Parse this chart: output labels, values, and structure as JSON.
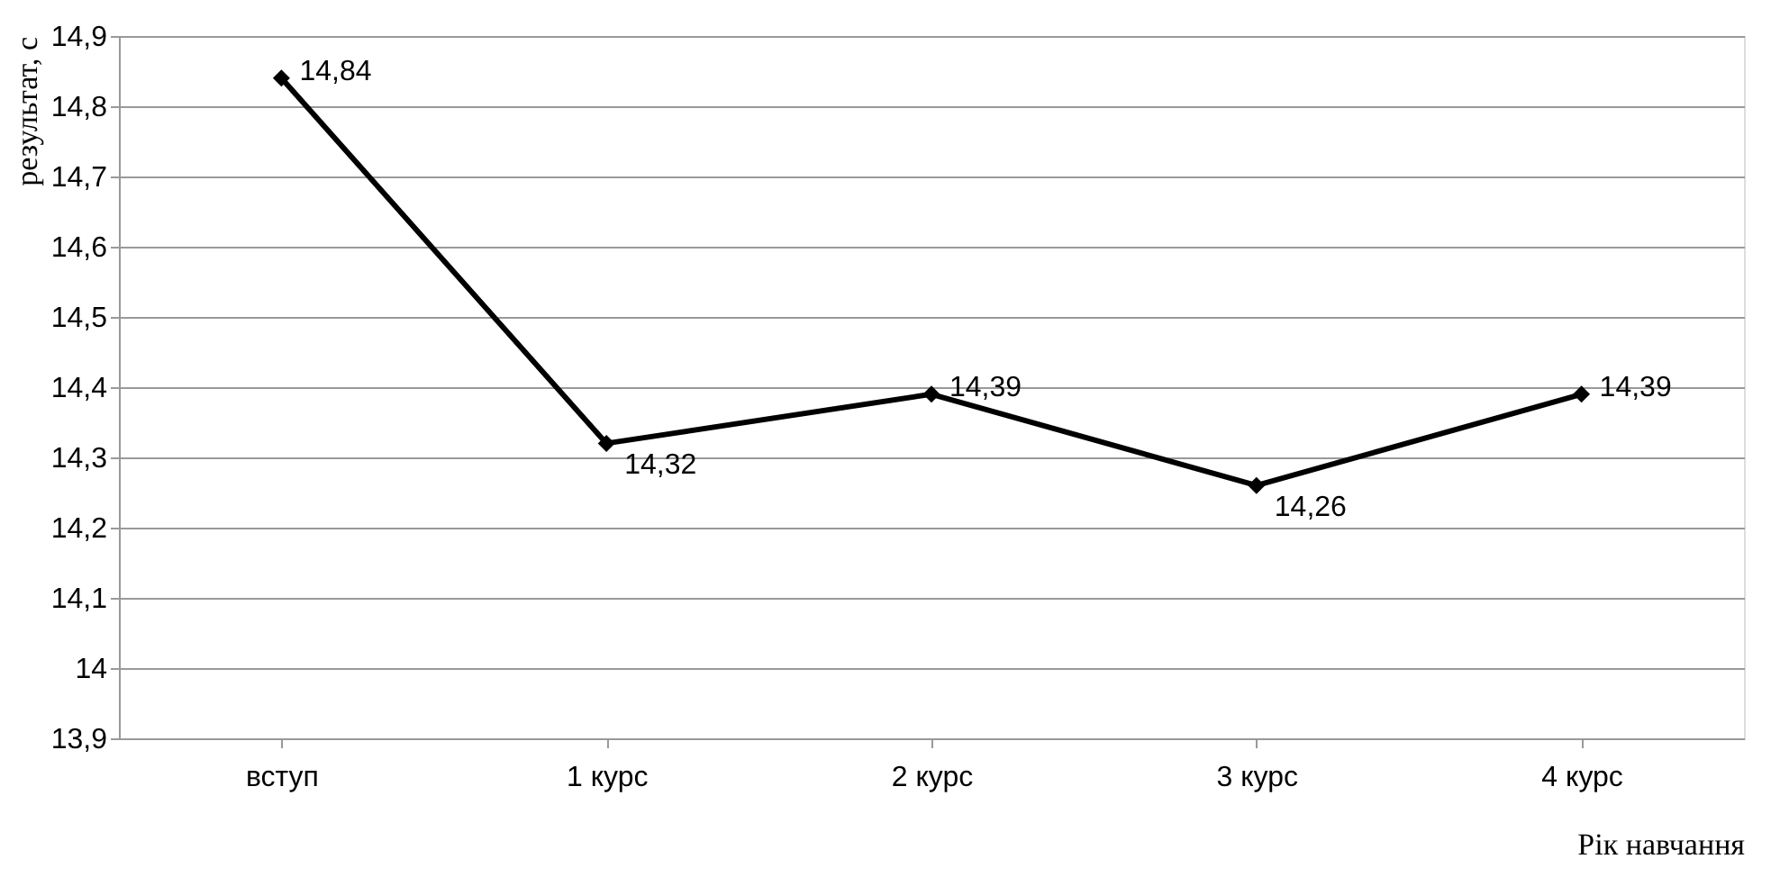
{
  "chart_data": {
    "type": "line",
    "ylabel": "результат, с",
    "xlabel": "Рік навчання",
    "categories": [
      "вступ",
      "1 курс",
      "2 курс",
      "3 курс",
      "4 курс"
    ],
    "series": [
      {
        "color": "#000000",
        "values": [
          14.84,
          14.32,
          14.39,
          14.26,
          14.39
        ],
        "value_labels": [
          "14,84",
          "14,32",
          "14,39",
          "14,26",
          "14,39"
        ]
      }
    ],
    "ylim": [
      13.9,
      14.9
    ],
    "yticks": [
      {
        "value": 13.9,
        "label": "13,9"
      },
      {
        "value": 14.0,
        "label": "14"
      },
      {
        "value": 14.1,
        "label": "14,1"
      },
      {
        "value": 14.2,
        "label": "14,2"
      },
      {
        "value": 14.3,
        "label": "14,3"
      },
      {
        "value": 14.4,
        "label": "14,4"
      },
      {
        "value": 14.5,
        "label": "14,5"
      },
      {
        "value": 14.6,
        "label": "14,6"
      },
      {
        "value": 14.7,
        "label": "14,7"
      },
      {
        "value": 14.8,
        "label": "14,8"
      },
      {
        "value": 14.9,
        "label": "14,9"
      }
    ],
    "grid": "y",
    "legend": false,
    "marker": "diamond",
    "line_style": "solid"
  }
}
